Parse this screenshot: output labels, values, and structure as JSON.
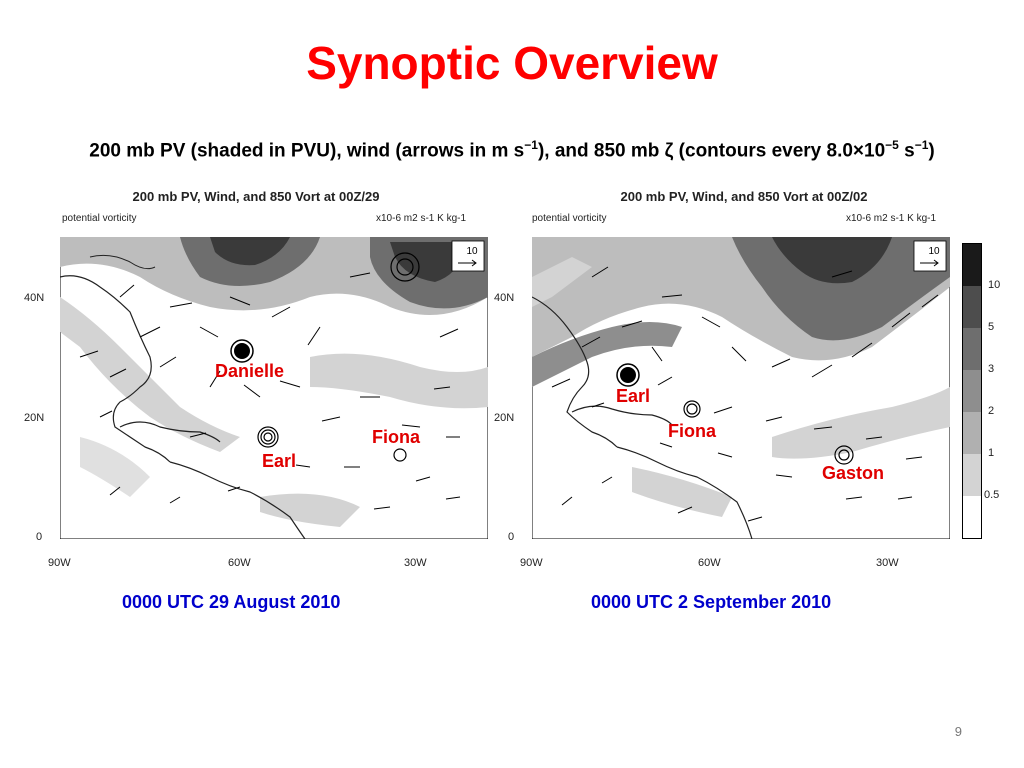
{
  "slide": {
    "title": "Synoptic Overview",
    "subtitle_main": "200 mb PV (shaded in PVU), wind (arrows in m s",
    "subtitle_sup1": "−1",
    "subtitle_mid": "), and 850 mb ζ (contours every 8.0×10",
    "subtitle_sup2": "−5",
    "subtitle_mid2": " s",
    "subtitle_sup3": "−1",
    "subtitle_end": ")",
    "page_number": "9"
  },
  "panels": [
    {
      "title": "200 mb PV, Wind, and 850 Vort at 00Z/29",
      "left_label": "potential vorticity",
      "right_label": "x10-6 m2 s-1 K kg-1",
      "ref_vector": "10",
      "lat_labels": [
        "40N",
        "20N",
        "0"
      ],
      "lon_labels": [
        "90W",
        "60W",
        "30W"
      ],
      "storms": [
        "Danielle",
        "Fiona",
        "Earl"
      ],
      "date": "0000 UTC 29 August 2010"
    },
    {
      "title": "200 mb PV, Wind, and 850 Vort at 00Z/02",
      "left_label": "potential vorticity",
      "right_label": "x10-6 m2 s-1 K kg-1",
      "ref_vector": "10",
      "lat_labels": [
        "40N",
        "20N",
        "0"
      ],
      "lon_labels": [
        "90W",
        "60W",
        "30W"
      ],
      "storms": [
        "Earl",
        "Fiona",
        "Gaston"
      ],
      "date": "0000 UTC 2 September 2010"
    }
  ],
  "colorbar": {
    "levels": [
      "10",
      "5",
      "3",
      "2",
      "1",
      "0.5"
    ],
    "colors": [
      "#1a1a1a",
      "#4d4d4d",
      "#6e6e6e",
      "#8e8e8e",
      "#b0b0b0",
      "#d3d3d3",
      "#ffffff"
    ]
  }
}
